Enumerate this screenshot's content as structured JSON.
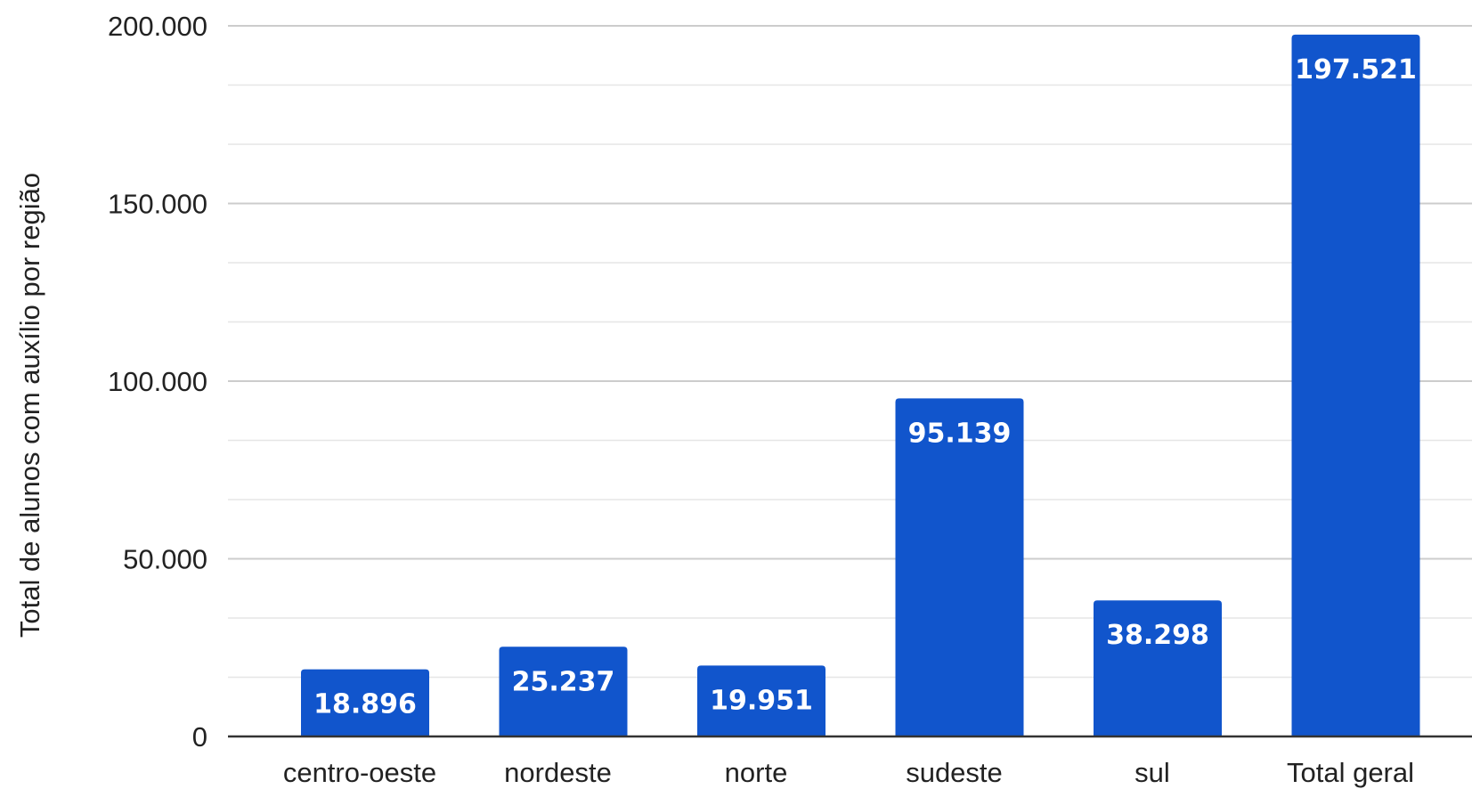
{
  "chart_data": {
    "type": "bar",
    "title": "",
    "xlabel": "",
    "ylabel": "Total de alunos com auxílio por região",
    "categories": [
      "centro-oeste",
      "nordeste",
      "norte",
      "sudeste",
      "sul",
      "Total geral"
    ],
    "values": [
      18896,
      25237,
      19951,
      95139,
      38298,
      197521
    ],
    "value_labels": [
      "18.896",
      "25.237",
      "19.951",
      "95.139",
      "38.298",
      "197.521"
    ],
    "ylim": [
      0,
      200000
    ],
    "yticks": [
      0,
      50000,
      100000,
      150000,
      200000
    ],
    "ytick_labels": [
      "0",
      "50.000",
      "100.000",
      "150.000",
      "200.000"
    ],
    "grid": true,
    "legend": "none",
    "colors": {
      "bar": "#1155CC",
      "major_grid": "#cccccc",
      "minor_grid": "#e6e6e6",
      "baseline": "#333333"
    }
  }
}
